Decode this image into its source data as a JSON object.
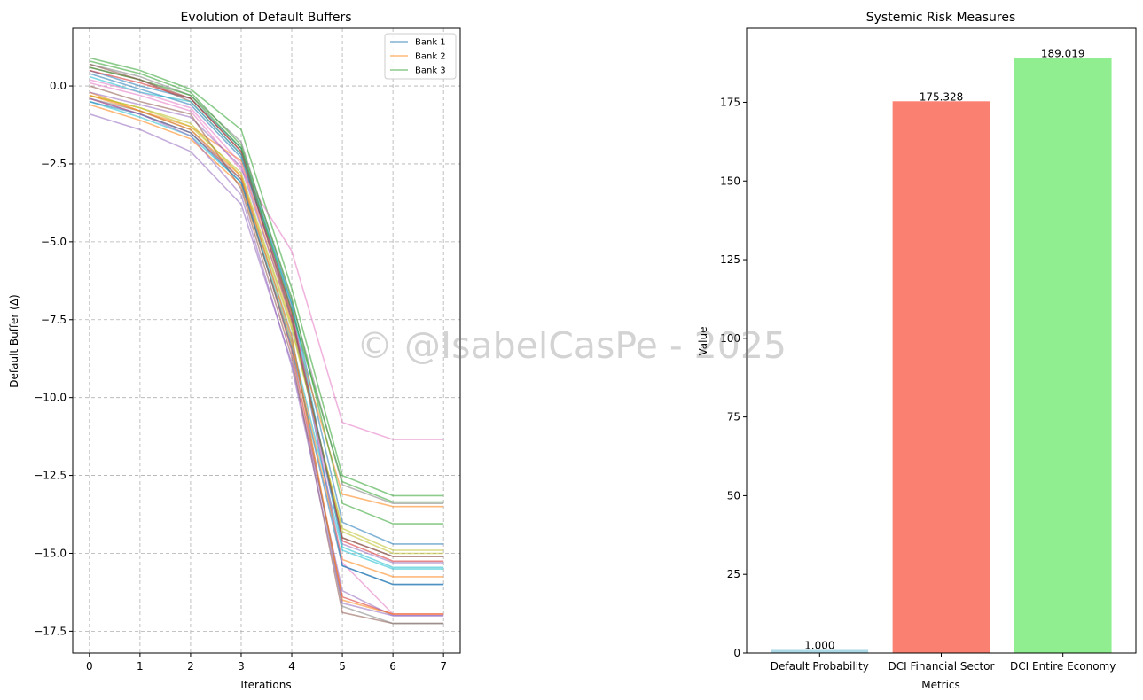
{
  "watermark": "© @IsabelCasPe - 2025",
  "chart_data": [
    {
      "type": "line",
      "title": "Evolution of Default Buffers",
      "xlabel": "Iterations",
      "ylabel": "Default Buffer (Δ)",
      "xlim": [
        -0.33,
        7.33
      ],
      "ylim": [
        -18.2,
        1.85
      ],
      "xticks": [
        0,
        1,
        2,
        3,
        4,
        5,
        6,
        7
      ],
      "xtick_labels": [
        "0",
        "1",
        "2",
        "3",
        "4",
        "5",
        "6",
        "7"
      ],
      "yticks": [
        -17.5,
        -15.0,
        -12.5,
        -10.0,
        -7.5,
        -5.0,
        -2.5,
        0.0
      ],
      "ytick_labels": [
        "−17.5",
        "−15.0",
        "−12.5",
        "−10.0",
        "−7.5",
        "−5.0",
        "−2.5",
        "0.0"
      ],
      "grid": true,
      "legend_position": "top-right",
      "legend": [
        "Bank 1",
        "Bank 2",
        "Bank 3"
      ],
      "x": [
        0,
        1,
        2,
        3,
        4,
        5,
        6,
        7
      ],
      "series": [
        {
          "name": "Bank 1",
          "color": "#1f77b4",
          "values": [
            0.5,
            0.0,
            -0.4,
            -2.0,
            -7.0,
            -14.0,
            -14.7,
            -14.7
          ]
        },
        {
          "name": "Bank 2",
          "color": "#ff7f0e",
          "values": [
            -0.2,
            -0.8,
            -1.3,
            -2.4,
            -7.6,
            -13.1,
            -13.5,
            -13.5
          ]
        },
        {
          "name": "Bank 3",
          "color": "#2ca02c",
          "values": [
            0.9,
            0.5,
            -0.1,
            -1.4,
            -6.5,
            -12.5,
            -13.15,
            -13.15
          ]
        },
        {
          "color": "#d62728",
          "values": [
            -0.4,
            -0.9,
            -1.5,
            -3.0,
            -8.5,
            -16.4,
            -16.95,
            -16.95
          ]
        },
        {
          "color": "#9467bd",
          "values": [
            -0.9,
            -1.4,
            -2.1,
            -3.8,
            -8.9,
            -16.2,
            -17.0,
            -17.0
          ]
        },
        {
          "color": "#8c564b",
          "values": [
            0.6,
            0.2,
            -0.5,
            -2.2,
            -7.4,
            -14.5,
            -15.1,
            -15.1
          ]
        },
        {
          "color": "#e377c2",
          "values": [
            0.1,
            -0.3,
            -0.8,
            -2.7,
            -5.3,
            -10.8,
            -11.35,
            -11.35
          ]
        },
        {
          "color": "#7f7f7f",
          "values": [
            0.7,
            0.3,
            -0.3,
            -1.8,
            -6.9,
            -12.8,
            -13.4,
            -13.4
          ]
        },
        {
          "color": "#bcbd22",
          "values": [
            -0.3,
            -0.7,
            -1.2,
            -2.9,
            -7.8,
            -14.2,
            -14.9,
            -14.9
          ]
        },
        {
          "color": "#17becf",
          "values": [
            -0.5,
            -1.0,
            -1.6,
            -3.1,
            -8.2,
            -14.9,
            -15.5,
            -15.5
          ]
        },
        {
          "color": "#1f77b4",
          "values": [
            0.4,
            -0.1,
            -0.6,
            -2.3,
            -7.2,
            -15.4,
            -16.0,
            -16.0
          ]
        },
        {
          "color": "#ff7f0e",
          "values": [
            -0.6,
            -1.1,
            -1.7,
            -3.2,
            -8.3,
            -15.2,
            -15.75,
            -15.75
          ]
        },
        {
          "color": "#2ca02c",
          "values": [
            0.8,
            0.4,
            -0.2,
            -1.9,
            -6.8,
            -13.4,
            -14.05,
            -14.05
          ]
        },
        {
          "color": "#d62728",
          "values": [
            0.5,
            0.1,
            -0.4,
            -2.1,
            -7.3,
            -14.6,
            -15.25,
            -15.25
          ]
        },
        {
          "color": "#9467bd",
          "values": [
            -0.2,
            -0.6,
            -1.0,
            -2.6,
            -7.5,
            -14.7,
            -15.3,
            -15.3
          ]
        },
        {
          "color": "#8c564b",
          "values": [
            0.0,
            -0.5,
            -0.9,
            -3.3,
            -8.7,
            -16.9,
            -17.25,
            -17.25
          ]
        },
        {
          "color": "#e377c2",
          "values": [
            0.2,
            -0.2,
            -0.7,
            -2.5,
            -7.1,
            -15.3,
            -16.95,
            -16.95
          ]
        },
        {
          "color": "#7f7f7f",
          "values": [
            -0.4,
            -0.8,
            -1.4,
            -3.0,
            -8.0,
            -16.7,
            -17.25,
            -17.25
          ]
        },
        {
          "color": "#bcbd22",
          "values": [
            -0.3,
            -0.7,
            -1.3,
            -2.8,
            -7.7,
            -14.3,
            -15.0,
            -15.0
          ]
        },
        {
          "color": "#17becf",
          "values": [
            0.3,
            -0.2,
            -0.5,
            -2.2,
            -7.0,
            -14.8,
            -15.45,
            -15.45
          ]
        },
        {
          "color": "#1f77b4",
          "values": [
            -0.5,
            -0.9,
            -1.5,
            -3.1,
            -8.4,
            -15.4,
            -16.0,
            -16.0
          ]
        },
        {
          "color": "#ff7f0e",
          "values": [
            -0.3,
            -0.8,
            -1.4,
            -2.9,
            -8.1,
            -16.5,
            -16.95,
            -16.95
          ]
        },
        {
          "color": "#2ca02c",
          "values": [
            0.6,
            0.2,
            -0.3,
            -2.0,
            -7.2,
            -12.7,
            -13.35,
            -13.35
          ]
        },
        {
          "color": "#8c564b",
          "values": [
            0.7,
            0.2,
            -0.4,
            -2.1,
            -7.5,
            -14.5,
            -15.1,
            -15.1
          ]
        },
        {
          "color": "#9467bd",
          "values": [
            -0.4,
            -0.9,
            -1.6,
            -3.5,
            -9.0,
            -16.6,
            -17.0,
            -17.0
          ]
        }
      ]
    },
    {
      "type": "bar",
      "title": "Systemic Risk Measures",
      "xlabel": "Metrics",
      "ylabel": "Value",
      "categories": [
        "Default Probability",
        "DCI Financial Sector",
        "DCI Entire Economy"
      ],
      "values": [
        1.0,
        175.328,
        189.019
      ],
      "value_labels": [
        "1.000",
        "175.328",
        "189.019"
      ],
      "colors": [
        "#add8e6",
        "#fa8072",
        "#90ee90"
      ],
      "ylim": [
        0,
        198.5
      ],
      "yticks": [
        0,
        25,
        50,
        75,
        100,
        125,
        150,
        175
      ],
      "ytick_labels": [
        "0",
        "25",
        "50",
        "75",
        "100",
        "125",
        "150",
        "175"
      ],
      "grid": false
    }
  ]
}
